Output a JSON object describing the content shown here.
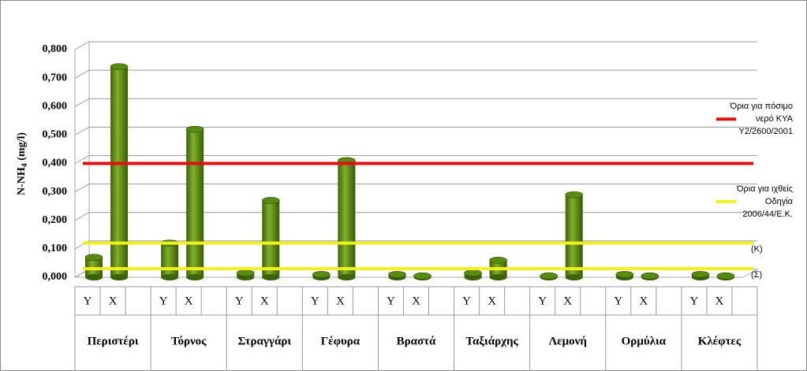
{
  "chart_data": {
    "type": "bar",
    "y_label": [
      "N-NH",
      "4",
      " (mg/l)"
    ],
    "categories": [
      "Περιστέρι",
      "Τόρνος",
      "Στραγγάρι",
      "Γέφυρα",
      "Βραστά",
      "Ταξιάρχης",
      "Λεμονή",
      "Ορμύλια",
      "Κλέφτες"
    ],
    "subcategories": [
      [
        "Υ",
        "Χ"
      ],
      [
        "Υ",
        "Χ"
      ],
      [
        "Υ",
        "Χ"
      ],
      [
        "Υ",
        "Χ"
      ],
      [
        "Υ",
        "Χ"
      ],
      [
        "Υ",
        "Χ"
      ],
      [
        "Υ",
        "Χ"
      ],
      [
        "Υ",
        "Χ"
      ],
      [
        "Υ",
        "Χ"
      ]
    ],
    "values": [
      [
        0.07,
        0.74
      ],
      [
        0.12,
        0.52
      ],
      [
        0.015,
        0.27
      ],
      [
        0.01,
        0.41
      ],
      [
        0.01,
        0.005
      ],
      [
        0.015,
        0.06
      ],
      [
        0.005,
        0.29
      ],
      [
        0.01,
        0.005
      ],
      [
        0.01,
        0.005
      ]
    ],
    "color": "#5a8a14",
    "ylim": [
      0,
      0.8
    ],
    "yticks": [
      {
        "value": 0,
        "label": "0,000"
      },
      {
        "value": 0.1,
        "label": "0,100"
      },
      {
        "value": 0.2,
        "label": "0,200"
      },
      {
        "value": 0.3,
        "label": "0,300"
      },
      {
        "value": 0.4,
        "label": "0,400"
      },
      {
        "value": 0.5,
        "label": "0,500"
      },
      {
        "value": 0.6,
        "label": "0,600"
      },
      {
        "value": 0.7,
        "label": "0,700"
      },
      {
        "value": 0.8,
        "label": "0,800"
      }
    ],
    "grid": true,
    "reference_lines": [
      {
        "value": 0.4,
        "color": "#e01010"
      },
      {
        "value": 0.12,
        "color": "#f2f01e",
        "label": "(Κ)"
      },
      {
        "value": 0.03,
        "color": "#f2f01e",
        "label": "(Σ)"
      }
    ],
    "legend": [
      {
        "color": "#e01010",
        "lines": [
          "Όρια για πόσιμο",
          "νερό ΚΥΑ",
          "Υ2/2600/2001"
        ]
      },
      {
        "color": "#f2f01e",
        "lines": [
          "Όρια για ιχθείς",
          "Οδηγία",
          "2006/44/Ε.Κ."
        ]
      }
    ]
  }
}
